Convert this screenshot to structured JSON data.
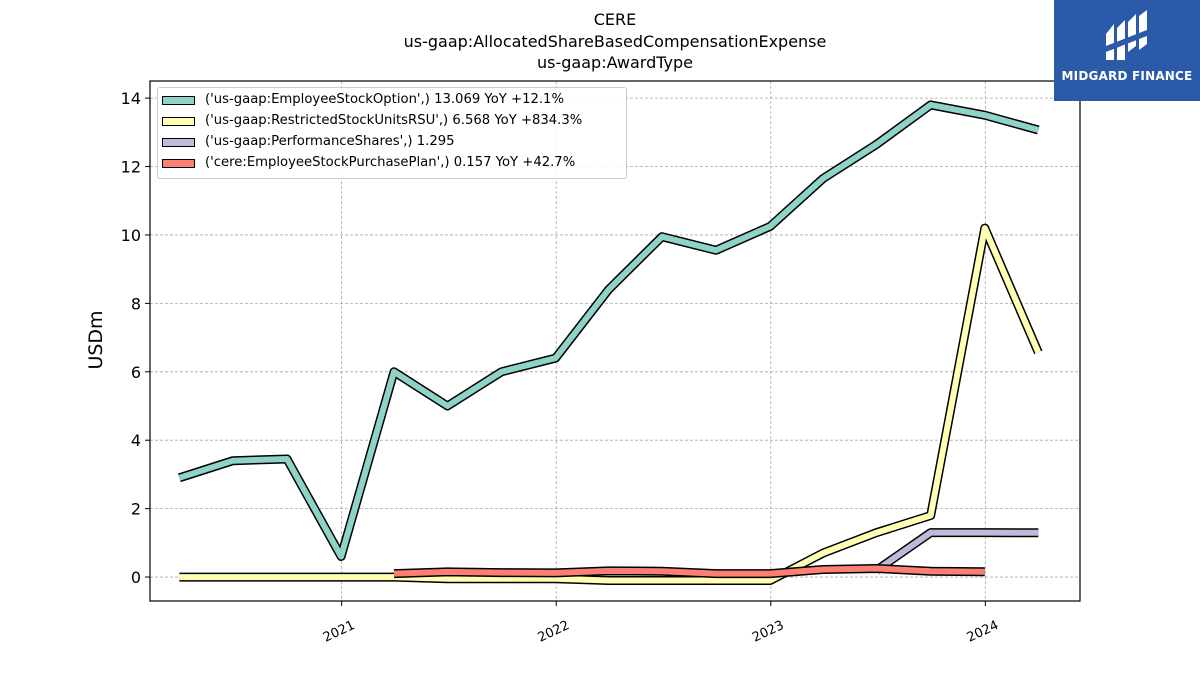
{
  "titles": {
    "line1": "CERE",
    "line2": "us-gaap:AllocatedShareBasedCompensationExpense",
    "line3": "us-gaap:AwardType"
  },
  "logo": {
    "text": "MIDGARD FINANCE",
    "background": "#2a5aa8"
  },
  "chart_data": {
    "type": "line",
    "ylabel": "USDm",
    "xlabel": "",
    "ylim": [
      -0.7,
      14.5
    ],
    "yticks": [
      0,
      2,
      4,
      6,
      8,
      10,
      12,
      14
    ],
    "xlim": [
      "2020-02-10",
      "2024-06-10"
    ],
    "xticks": [
      {
        "label": "2021",
        "date": "2021-01-01"
      },
      {
        "label": "2022",
        "date": "2022-01-01"
      },
      {
        "label": "2023",
        "date": "2023-01-01"
      },
      {
        "label": "2024",
        "date": "2024-01-01"
      }
    ],
    "grid": true,
    "legend_position": "top-left",
    "series": [
      {
        "name": "('us-gaap:EmployeeStockOption',) 13.069 YoY +12.1%",
        "color": "#8dd3c7",
        "points": [
          [
            "2020-03-31",
            2.9
          ],
          [
            "2020-06-30",
            3.4
          ],
          [
            "2020-09-30",
            3.45
          ],
          [
            "2020-12-31",
            0.6
          ],
          [
            "2021-03-31",
            6.0
          ],
          [
            "2021-06-30",
            5.0
          ],
          [
            "2021-09-30",
            6.0
          ],
          [
            "2021-12-31",
            6.4
          ],
          [
            "2022-03-31",
            8.4
          ],
          [
            "2022-06-30",
            9.95
          ],
          [
            "2022-09-30",
            9.55
          ],
          [
            "2022-12-31",
            10.25
          ],
          [
            "2023-03-31",
            11.65
          ],
          [
            "2023-06-30",
            12.65
          ],
          [
            "2023-09-30",
            13.8
          ],
          [
            "2023-12-31",
            13.5
          ],
          [
            "2024-03-31",
            13.069
          ]
        ]
      },
      {
        "name": "('us-gaap:RestrictedStockUnitsRSU',) 6.568 YoY +834.3%",
        "color": "#ffffb3",
        "points": [
          [
            "2020-03-31",
            0.0
          ],
          [
            "2020-06-30",
            0.0
          ],
          [
            "2020-09-30",
            0.0
          ],
          [
            "2020-12-31",
            0.0
          ],
          [
            "2021-03-31",
            0.0
          ],
          [
            "2021-06-30",
            -0.05
          ],
          [
            "2021-09-30",
            -0.05
          ],
          [
            "2021-12-31",
            -0.05
          ],
          [
            "2022-03-31",
            -0.1
          ],
          [
            "2022-06-30",
            -0.1
          ],
          [
            "2022-09-30",
            -0.1
          ],
          [
            "2022-12-31",
            -0.1
          ],
          [
            "2023-03-31",
            0.7
          ],
          [
            "2023-06-30",
            1.3
          ],
          [
            "2023-09-30",
            1.8
          ],
          [
            "2023-12-31",
            10.2
          ],
          [
            "2024-03-31",
            6.568
          ]
        ]
      },
      {
        "name": "('us-gaap:PerformanceShares',) 1.295",
        "color": "#bebada",
        "points": [
          [
            "2023-06-30",
            0.2
          ],
          [
            "2023-09-30",
            1.3
          ],
          [
            "2023-12-31",
            1.3
          ],
          [
            "2024-03-31",
            1.295
          ]
        ]
      },
      {
        "name": "('cere:EmployeeStockPurchasePlan',) 0.157 YoY +42.7%",
        "color": "#fb8072",
        "points": [
          [
            "2021-03-31",
            0.1
          ],
          [
            "2021-06-30",
            0.15
          ],
          [
            "2021-09-30",
            0.13
          ],
          [
            "2021-12-31",
            0.12
          ],
          [
            "2022-03-31",
            0.18
          ],
          [
            "2022-06-30",
            0.17
          ],
          [
            "2022-09-30",
            0.1
          ],
          [
            "2022-12-31",
            0.1
          ],
          [
            "2023-03-31",
            0.22
          ],
          [
            "2023-06-30",
            0.25
          ],
          [
            "2023-09-30",
            0.17
          ],
          [
            "2023-12-31",
            0.157
          ]
        ]
      }
    ]
  }
}
